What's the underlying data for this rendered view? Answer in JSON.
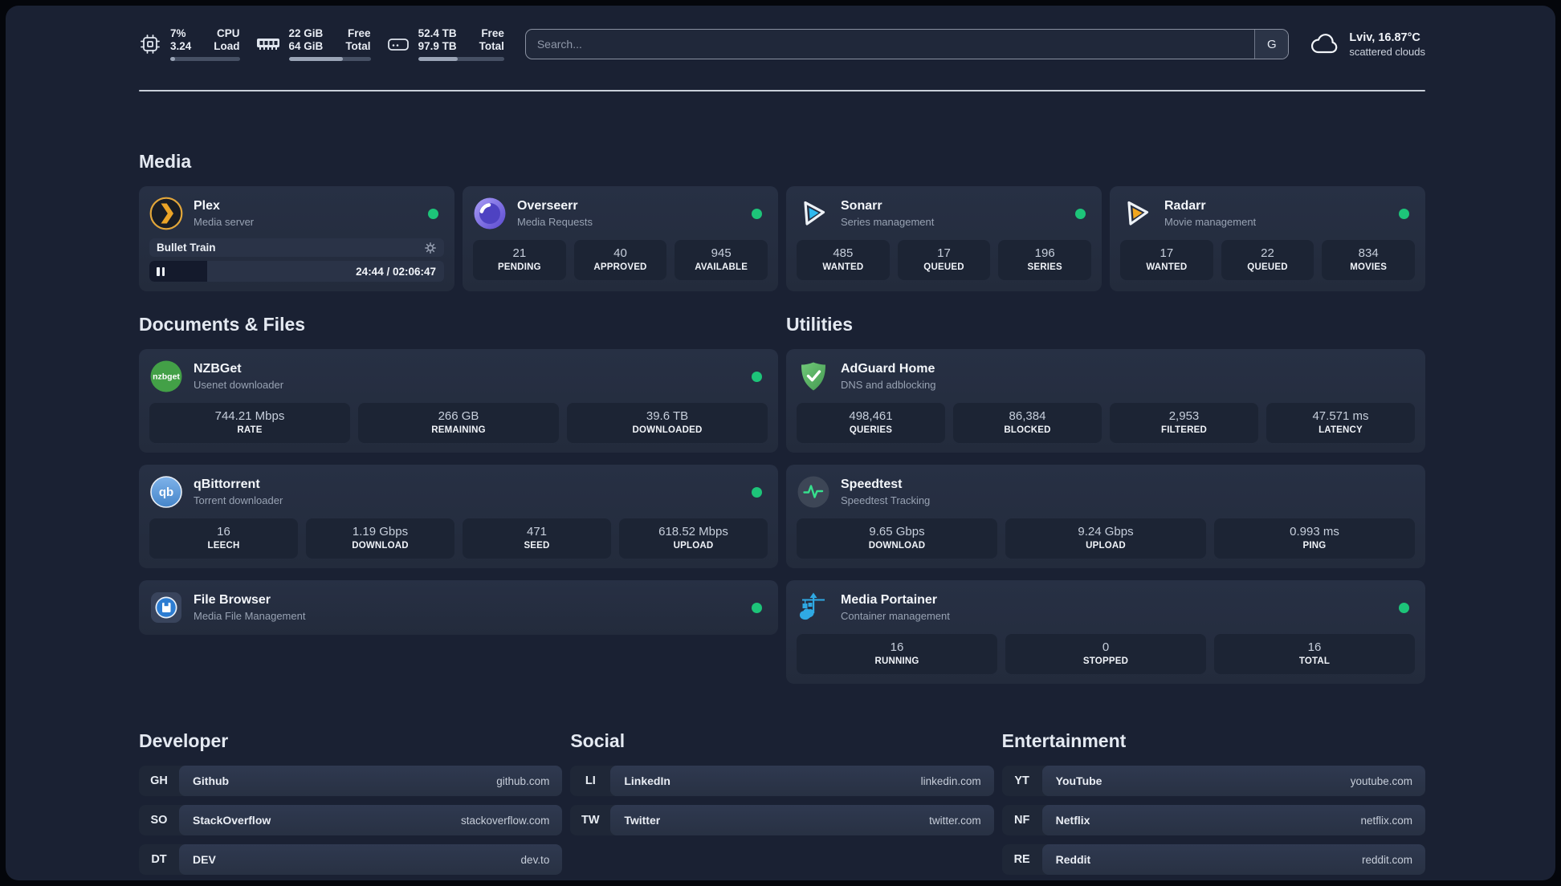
{
  "topbar": {
    "cpu": {
      "v1": "7%",
      "v2": "3.24",
      "l1": "CPU",
      "l2": "Load",
      "progress_pct": 7
    },
    "ram": {
      "v1": "22 GiB",
      "v2": "64 GiB",
      "l1": "Free",
      "l2": "Total",
      "progress_pct": 66
    },
    "disk": {
      "v1": "52.4 TB",
      "v2": "97.9 TB",
      "l1": "Free",
      "l2": "Total",
      "progress_pct": 46
    },
    "search": {
      "placeholder": "Search...",
      "button_label": "G"
    },
    "weather": {
      "location": "Lviv, 16.87°C",
      "condition": "scattered clouds"
    }
  },
  "sections": {
    "media": {
      "title": "Media"
    },
    "documents": {
      "title": "Documents & Files"
    },
    "utilities": {
      "title": "Utilities"
    },
    "developer": {
      "title": "Developer"
    },
    "social": {
      "title": "Social"
    },
    "entertainment": {
      "title": "Entertainment"
    }
  },
  "apps": {
    "plex": {
      "name": "Plex",
      "desc": "Media server",
      "now_playing": {
        "title": "Bullet Train",
        "time": "24:44 / 02:06:47",
        "progress_pct": 19.6
      }
    },
    "overseerr": {
      "name": "Overseerr",
      "desc": "Media Requests",
      "stats": [
        {
          "value": "21",
          "label": "PENDING"
        },
        {
          "value": "40",
          "label": "APPROVED"
        },
        {
          "value": "945",
          "label": "AVAILABLE"
        }
      ]
    },
    "sonarr": {
      "name": "Sonarr",
      "desc": "Series management",
      "stats": [
        {
          "value": "485",
          "label": "WANTED"
        },
        {
          "value": "17",
          "label": "QUEUED"
        },
        {
          "value": "196",
          "label": "SERIES"
        }
      ]
    },
    "radarr": {
      "name": "Radarr",
      "desc": "Movie management",
      "stats": [
        {
          "value": "17",
          "label": "WANTED"
        },
        {
          "value": "22",
          "label": "QUEUED"
        },
        {
          "value": "834",
          "label": "MOVIES"
        }
      ]
    },
    "nzbget": {
      "name": "NZBGet",
      "desc": "Usenet downloader",
      "stats": [
        {
          "value": "744.21 Mbps",
          "label": "RATE"
        },
        {
          "value": "266 GB",
          "label": "REMAINING"
        },
        {
          "value": "39.6 TB",
          "label": "DOWNLOADED"
        }
      ]
    },
    "qbittorrent": {
      "name": "qBittorrent",
      "desc": "Torrent downloader",
      "stats": [
        {
          "value": "16",
          "label": "LEECH"
        },
        {
          "value": "1.19 Gbps",
          "label": "DOWNLOAD"
        },
        {
          "value": "471",
          "label": "SEED"
        },
        {
          "value": "618.52 Mbps",
          "label": "UPLOAD"
        }
      ]
    },
    "filebrowser": {
      "name": "File Browser",
      "desc": "Media File Management"
    },
    "adguard": {
      "name": "AdGuard Home",
      "desc": "DNS and adblocking",
      "stats": [
        {
          "value": "498,461",
          "label": "QUERIES"
        },
        {
          "value": "86,384",
          "label": "BLOCKED"
        },
        {
          "value": "2,953",
          "label": "FILTERED"
        },
        {
          "value": "47.571 ms",
          "label": "LATENCY"
        }
      ]
    },
    "speedtest": {
      "name": "Speedtest",
      "desc": "Speedtest Tracking",
      "stats": [
        {
          "value": "9.65 Gbps",
          "label": "DOWNLOAD"
        },
        {
          "value": "9.24 Gbps",
          "label": "UPLOAD"
        },
        {
          "value": "0.993 ms",
          "label": "PING"
        }
      ]
    },
    "portainer": {
      "name": "Media Portainer",
      "desc": "Container management",
      "stats": [
        {
          "value": "16",
          "label": "RUNNING"
        },
        {
          "value": "0",
          "label": "STOPPED"
        },
        {
          "value": "16",
          "label": "TOTAL"
        }
      ]
    }
  },
  "links": {
    "developer": [
      {
        "tag": "GH",
        "name": "Github",
        "url": "github.com"
      },
      {
        "tag": "SO",
        "name": "StackOverflow",
        "url": "stackoverflow.com"
      },
      {
        "tag": "DT",
        "name": "DEV",
        "url": "dev.to"
      }
    ],
    "social": [
      {
        "tag": "LI",
        "name": "LinkedIn",
        "url": "linkedin.com"
      },
      {
        "tag": "TW",
        "name": "Twitter",
        "url": "twitter.com"
      }
    ],
    "entertainment": [
      {
        "tag": "YT",
        "name": "YouTube",
        "url": "youtube.com"
      },
      {
        "tag": "NF",
        "name": "Netflix",
        "url": "netflix.com"
      },
      {
        "tag": "RE",
        "name": "Reddit",
        "url": "reddit.com"
      }
    ]
  },
  "colors": {
    "page_bg": "#1a2133",
    "card_bg": "#273044",
    "stat_bg": "#1c2434",
    "status_green": "#1dc479"
  }
}
